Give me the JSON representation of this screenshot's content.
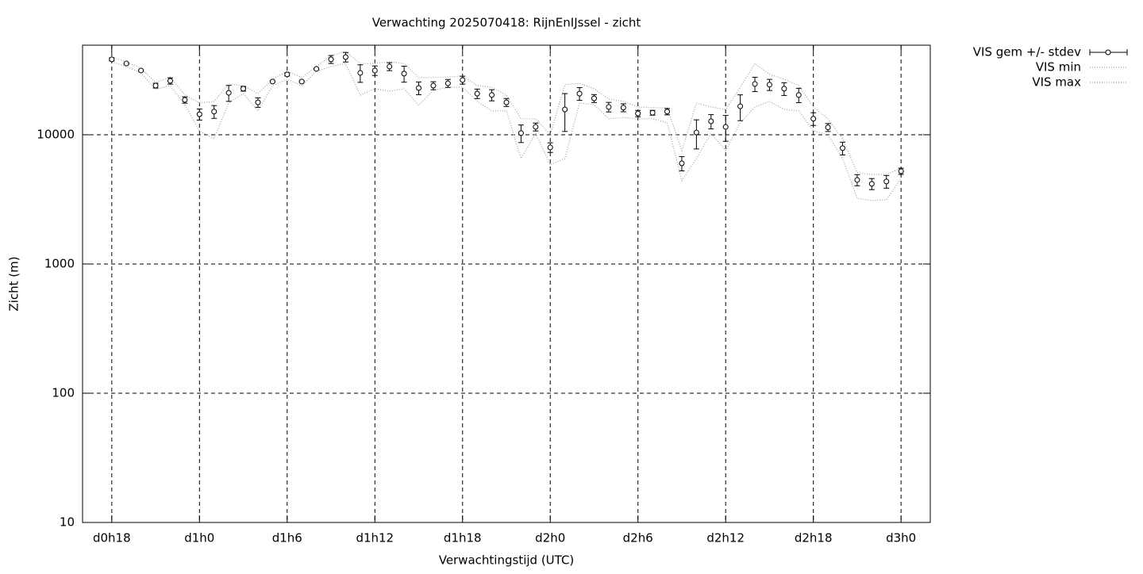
{
  "chart_data": {
    "type": "errorline",
    "title": "Verwachting 2025070418: RijnEnIJssel - zicht",
    "xlabel": "Verwachtingstijd (UTC)",
    "ylabel": "Zicht (m)",
    "log_y": true,
    "grid": true,
    "legend": "outside-top-right",
    "xlim": [
      16,
      74
    ],
    "xticks": [
      {
        "value": 18,
        "label": "d0h18"
      },
      {
        "value": 24,
        "label": "d1h0"
      },
      {
        "value": 30,
        "label": "d1h6"
      },
      {
        "value": 36,
        "label": "d1h12"
      },
      {
        "value": 42,
        "label": "d1h18"
      },
      {
        "value": 48,
        "label": "d2h0"
      },
      {
        "value": 54,
        "label": "d2h6"
      },
      {
        "value": 60,
        "label": "d2h12"
      },
      {
        "value": 66,
        "label": "d2h18"
      },
      {
        "value": 72,
        "label": "d3h0"
      }
    ],
    "ylim": [
      10,
      49300
    ],
    "yticks": [
      10,
      100,
      1000,
      10000
    ],
    "x": [
      18,
      19,
      20,
      21,
      22,
      23,
      24,
      25,
      26,
      27,
      28,
      29,
      30,
      31,
      32,
      33,
      34,
      35,
      36,
      37,
      38,
      39,
      40,
      41,
      42,
      43,
      44,
      45,
      46,
      47,
      48,
      49,
      50,
      51,
      52,
      53,
      54,
      55,
      56,
      57,
      58,
      59,
      60,
      61,
      62,
      63,
      64,
      65,
      66,
      67,
      68,
      69,
      70,
      71,
      72
    ],
    "series": [
      {
        "name": "VIS gem +/- stdev",
        "color": "#000000",
        "values": [
          38300,
          35600,
          31400,
          24000,
          26100,
          18600,
          14400,
          15100,
          21100,
          22700,
          17800,
          25800,
          29300,
          25800,
          32300,
          38300,
          39900,
          30100,
          31400,
          33700,
          29700,
          23000,
          24000,
          25000,
          26500,
          20800,
          20300,
          17800,
          10300,
          11500,
          7980,
          15700,
          20800,
          19100,
          16400,
          16200,
          14600,
          14800,
          15100,
          6010,
          10400,
          12700,
          11500,
          16600,
          24700,
          24400,
          22700,
          20300,
          13300,
          11400,
          7870,
          4470,
          4170,
          4350,
          5220
        ],
        "errors": [
          1080,
          500,
          440,
          1020,
          1470,
          1050,
          1420,
          1710,
          2980,
          960,
          1510,
          360,
          830,
          360,
          460,
          2710,
          3380,
          4670,
          2660,
          2380,
          4200,
          2600,
          1700,
          1770,
          1870,
          1760,
          2010,
          1260,
          1600,
          810,
          680,
          5100,
          2350,
          1350,
          1390,
          1150,
          820,
          630,
          850,
          760,
          2640,
          1610,
          2600,
          3750,
          3140,
          2410,
          2570,
          2580,
          1500,
          810,
          890,
          440,
          410,
          490,
          290
        ]
      },
      {
        "name": "VIS min",
        "color": "#a0a0a0",
        "values": [
          36700,
          33700,
          30100,
          22400,
          24000,
          17100,
          10700,
          9320,
          17600,
          20800,
          15300,
          24000,
          26900,
          24000,
          31000,
          33700,
          35600,
          20300,
          22700,
          21700,
          22700,
          16900,
          22100,
          23300,
          23300,
          18100,
          15300,
          15300,
          6550,
          10300,
          5850,
          6550,
          17600,
          17100,
          13300,
          13600,
          13300,
          13300,
          12400,
          4410,
          6550,
          10300,
          7540,
          12400,
          16400,
          18100,
          15700,
          15300,
          10700,
          10000,
          6550,
          3230,
          3100,
          3140,
          4600
        ]
      },
      {
        "name": "VIS max",
        "color": "#a0a0a0",
        "values": [
          39900,
          36700,
          32700,
          25400,
          28000,
          20300,
          17600,
          18100,
          24700,
          24000,
          20800,
          26900,
          31000,
          27700,
          33700,
          41000,
          44100,
          35600,
          35600,
          36700,
          35600,
          27700,
          27700,
          28000,
          28400,
          24000,
          23300,
          20300,
          13300,
          13300,
          10000,
          24400,
          25000,
          22700,
          18900,
          18100,
          16400,
          16200,
          16200,
          7540,
          17600,
          16400,
          15700,
          23300,
          35600,
          29300,
          26900,
          24000,
          16400,
          13300,
          9320,
          5080,
          4930,
          4930,
          5520
        ]
      }
    ]
  }
}
